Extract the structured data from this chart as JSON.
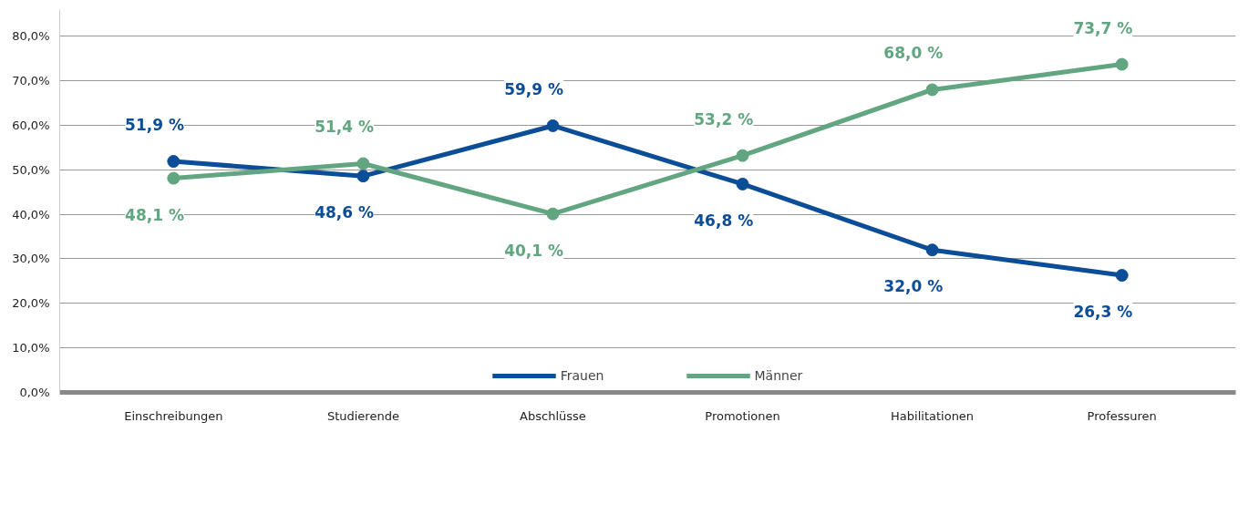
{
  "chart_data": {
    "type": "line",
    "categories": [
      "Einschreibungen",
      "Studierende",
      "Abschlüsse",
      "Promotionen",
      "Habilitationen",
      "Professuren"
    ],
    "series": [
      {
        "name": "Frauen",
        "color": "#0b4d96",
        "values": [
          51.9,
          48.6,
          59.9,
          46.8,
          32.0,
          26.3
        ],
        "value_labels": [
          "51,9 %",
          "48,6 %",
          "59,9 %",
          "46,8 %",
          "32,0 %",
          "26,3 %"
        ]
      },
      {
        "name": "Männer",
        "color": "#62a581",
        "values": [
          48.1,
          51.4,
          40.1,
          53.2,
          68.0,
          73.7
        ],
        "value_labels": [
          "48,1 %",
          "51,4 %",
          "40,1 %",
          "53,2 %",
          "68,0 %",
          "73,7 %"
        ]
      }
    ],
    "ylim": [
      0,
      86
    ],
    "yticks": [
      {
        "value": 0,
        "label": "0,0%"
      },
      {
        "value": 10,
        "label": "10,0%"
      },
      {
        "value": 20,
        "label": "20,0%"
      },
      {
        "value": 30,
        "label": "30,0%"
      },
      {
        "value": 40,
        "label": "40,0%"
      },
      {
        "value": 50,
        "label": "50,0%"
      },
      {
        "value": 60,
        "label": "60,0%"
      },
      {
        "value": 70,
        "label": "70,0%"
      },
      {
        "value": 80,
        "label": "80,0%"
      }
    ],
    "grid": "y",
    "legend": "bottom",
    "marker": "circle",
    "line_style": "solid"
  }
}
